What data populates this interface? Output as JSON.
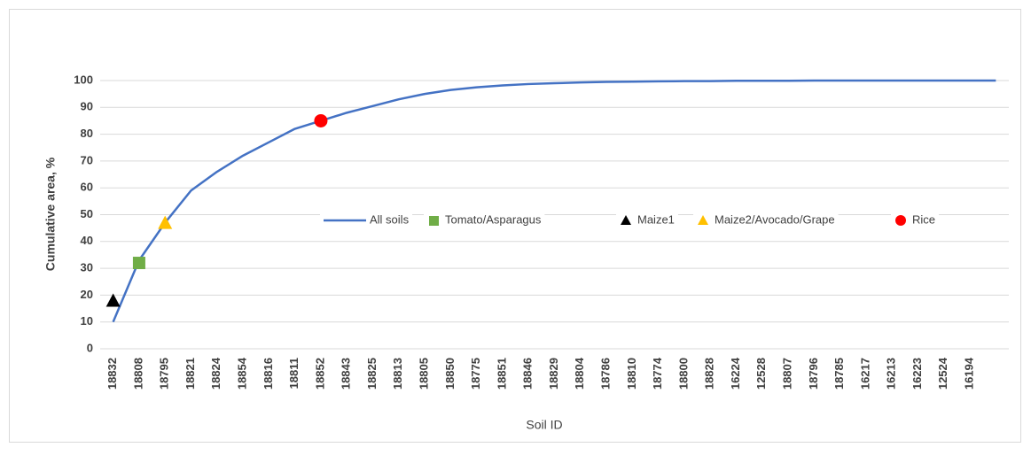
{
  "chart_data": {
    "type": "line",
    "x_label": "Soil ID",
    "y_label": "Cumulative area, %",
    "categories": [
      "18832",
      "18808",
      "18795",
      "18821",
      "18824",
      "18854",
      "18816",
      "18811",
      "18852",
      "18843",
      "18825",
      "18813",
      "18805",
      "18850",
      "18775",
      "18851",
      "18846",
      "18829",
      "18804",
      "18786",
      "18810",
      "18774",
      "18800",
      "18828",
      "16224",
      "12528",
      "18807",
      "18796",
      "18785",
      "16217",
      "16213",
      "16223",
      "12524",
      "16194",
      null
    ],
    "ylim": [
      0,
      100
    ],
    "yticks": [
      0,
      10,
      20,
      30,
      40,
      50,
      60,
      70,
      80,
      90,
      100
    ],
    "grid": true,
    "series": [
      {
        "name": "All soils",
        "color": "#4472c4",
        "marker": "line",
        "values": [
          10,
          33,
          47,
          59,
          66,
          72,
          77,
          82,
          85,
          88,
          90.5,
          93,
          95,
          96.5,
          97.5,
          98.2,
          98.7,
          99,
          99.3,
          99.5,
          99.6,
          99.7,
          99.8,
          99.8,
          99.9,
          99.9,
          99.9,
          100,
          100,
          100,
          100,
          100,
          100,
          100,
          100
        ]
      },
      {
        "name": "Tomato/Asparagus",
        "color": "#70ad47",
        "marker": "square",
        "values": [
          null,
          32,
          null,
          null,
          null,
          null,
          null,
          null,
          null,
          null,
          null,
          null,
          null,
          null,
          null,
          null,
          null,
          null,
          null,
          null,
          null,
          null,
          null,
          null,
          null,
          null,
          null,
          null,
          null,
          null,
          null,
          null,
          null,
          null,
          null
        ]
      },
      {
        "name": "Maize1",
        "color": "#000000",
        "marker": "triangle",
        "values": [
          18,
          null,
          null,
          null,
          null,
          null,
          null,
          null,
          null,
          null,
          null,
          null,
          null,
          null,
          null,
          null,
          null,
          null,
          null,
          null,
          null,
          null,
          null,
          null,
          null,
          null,
          null,
          null,
          null,
          null,
          null,
          null,
          null,
          null,
          null
        ]
      },
      {
        "name": "Maize2/Avocado/Grape",
        "color": "#ffc000",
        "marker": "triangle",
        "values": [
          null,
          null,
          47,
          null,
          null,
          null,
          null,
          null,
          null,
          null,
          null,
          null,
          null,
          null,
          null,
          null,
          null,
          null,
          null,
          null,
          null,
          null,
          null,
          null,
          null,
          null,
          null,
          null,
          null,
          null,
          null,
          null,
          null,
          null,
          null
        ]
      },
      {
        "name": "Rice",
        "color": "#ff0000",
        "marker": "circle",
        "values": [
          null,
          null,
          null,
          null,
          null,
          null,
          null,
          null,
          85,
          null,
          null,
          null,
          null,
          null,
          null,
          null,
          null,
          null,
          null,
          null,
          null,
          null,
          null,
          null,
          null,
          null,
          null,
          null,
          null,
          null,
          null,
          null,
          null,
          null,
          null
        ]
      }
    ]
  }
}
